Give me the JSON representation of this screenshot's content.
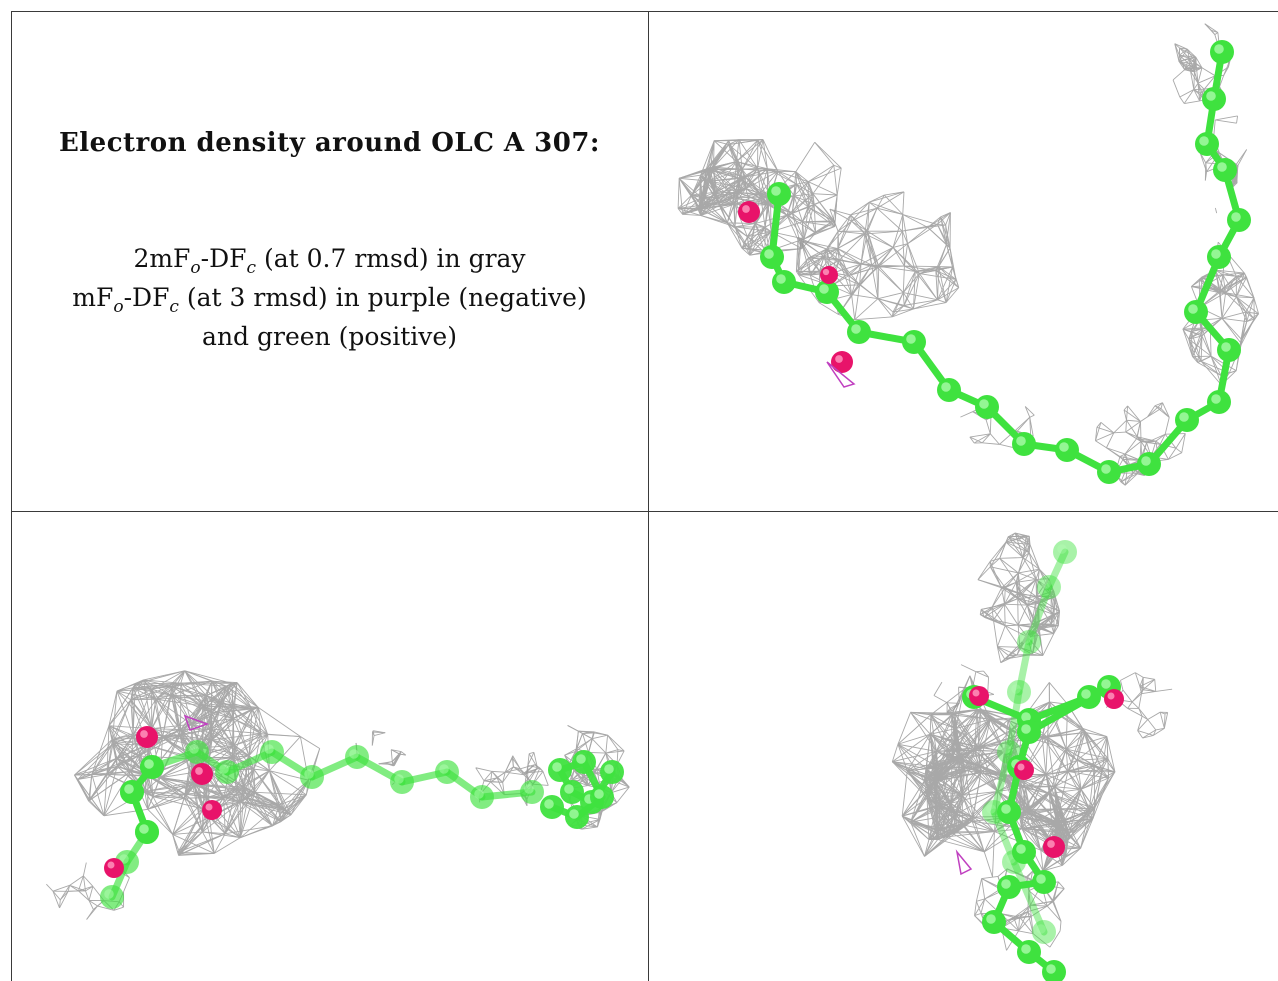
{
  "caption": {
    "title": "Electron density around OLC A 307:",
    "line1": {
      "pre": "2mF",
      "sub1": "o",
      "mid": "-DF",
      "sub2": "c",
      "post": " (at 0.7 rmsd) in gray"
    },
    "line2": {
      "pre": "mF",
      "sub1": "o",
      "mid": "-DF",
      "sub2": "c",
      "post": " (at 3 rmsd) in purple (negative)"
    },
    "line3": "and green (positive)"
  },
  "colors": {
    "carbon": "#3fe23f",
    "oxygen": "#e8136a",
    "mesh": "#9a9a9a",
    "negative_density": "#c040c0",
    "border": "#3a3a3a"
  }
}
